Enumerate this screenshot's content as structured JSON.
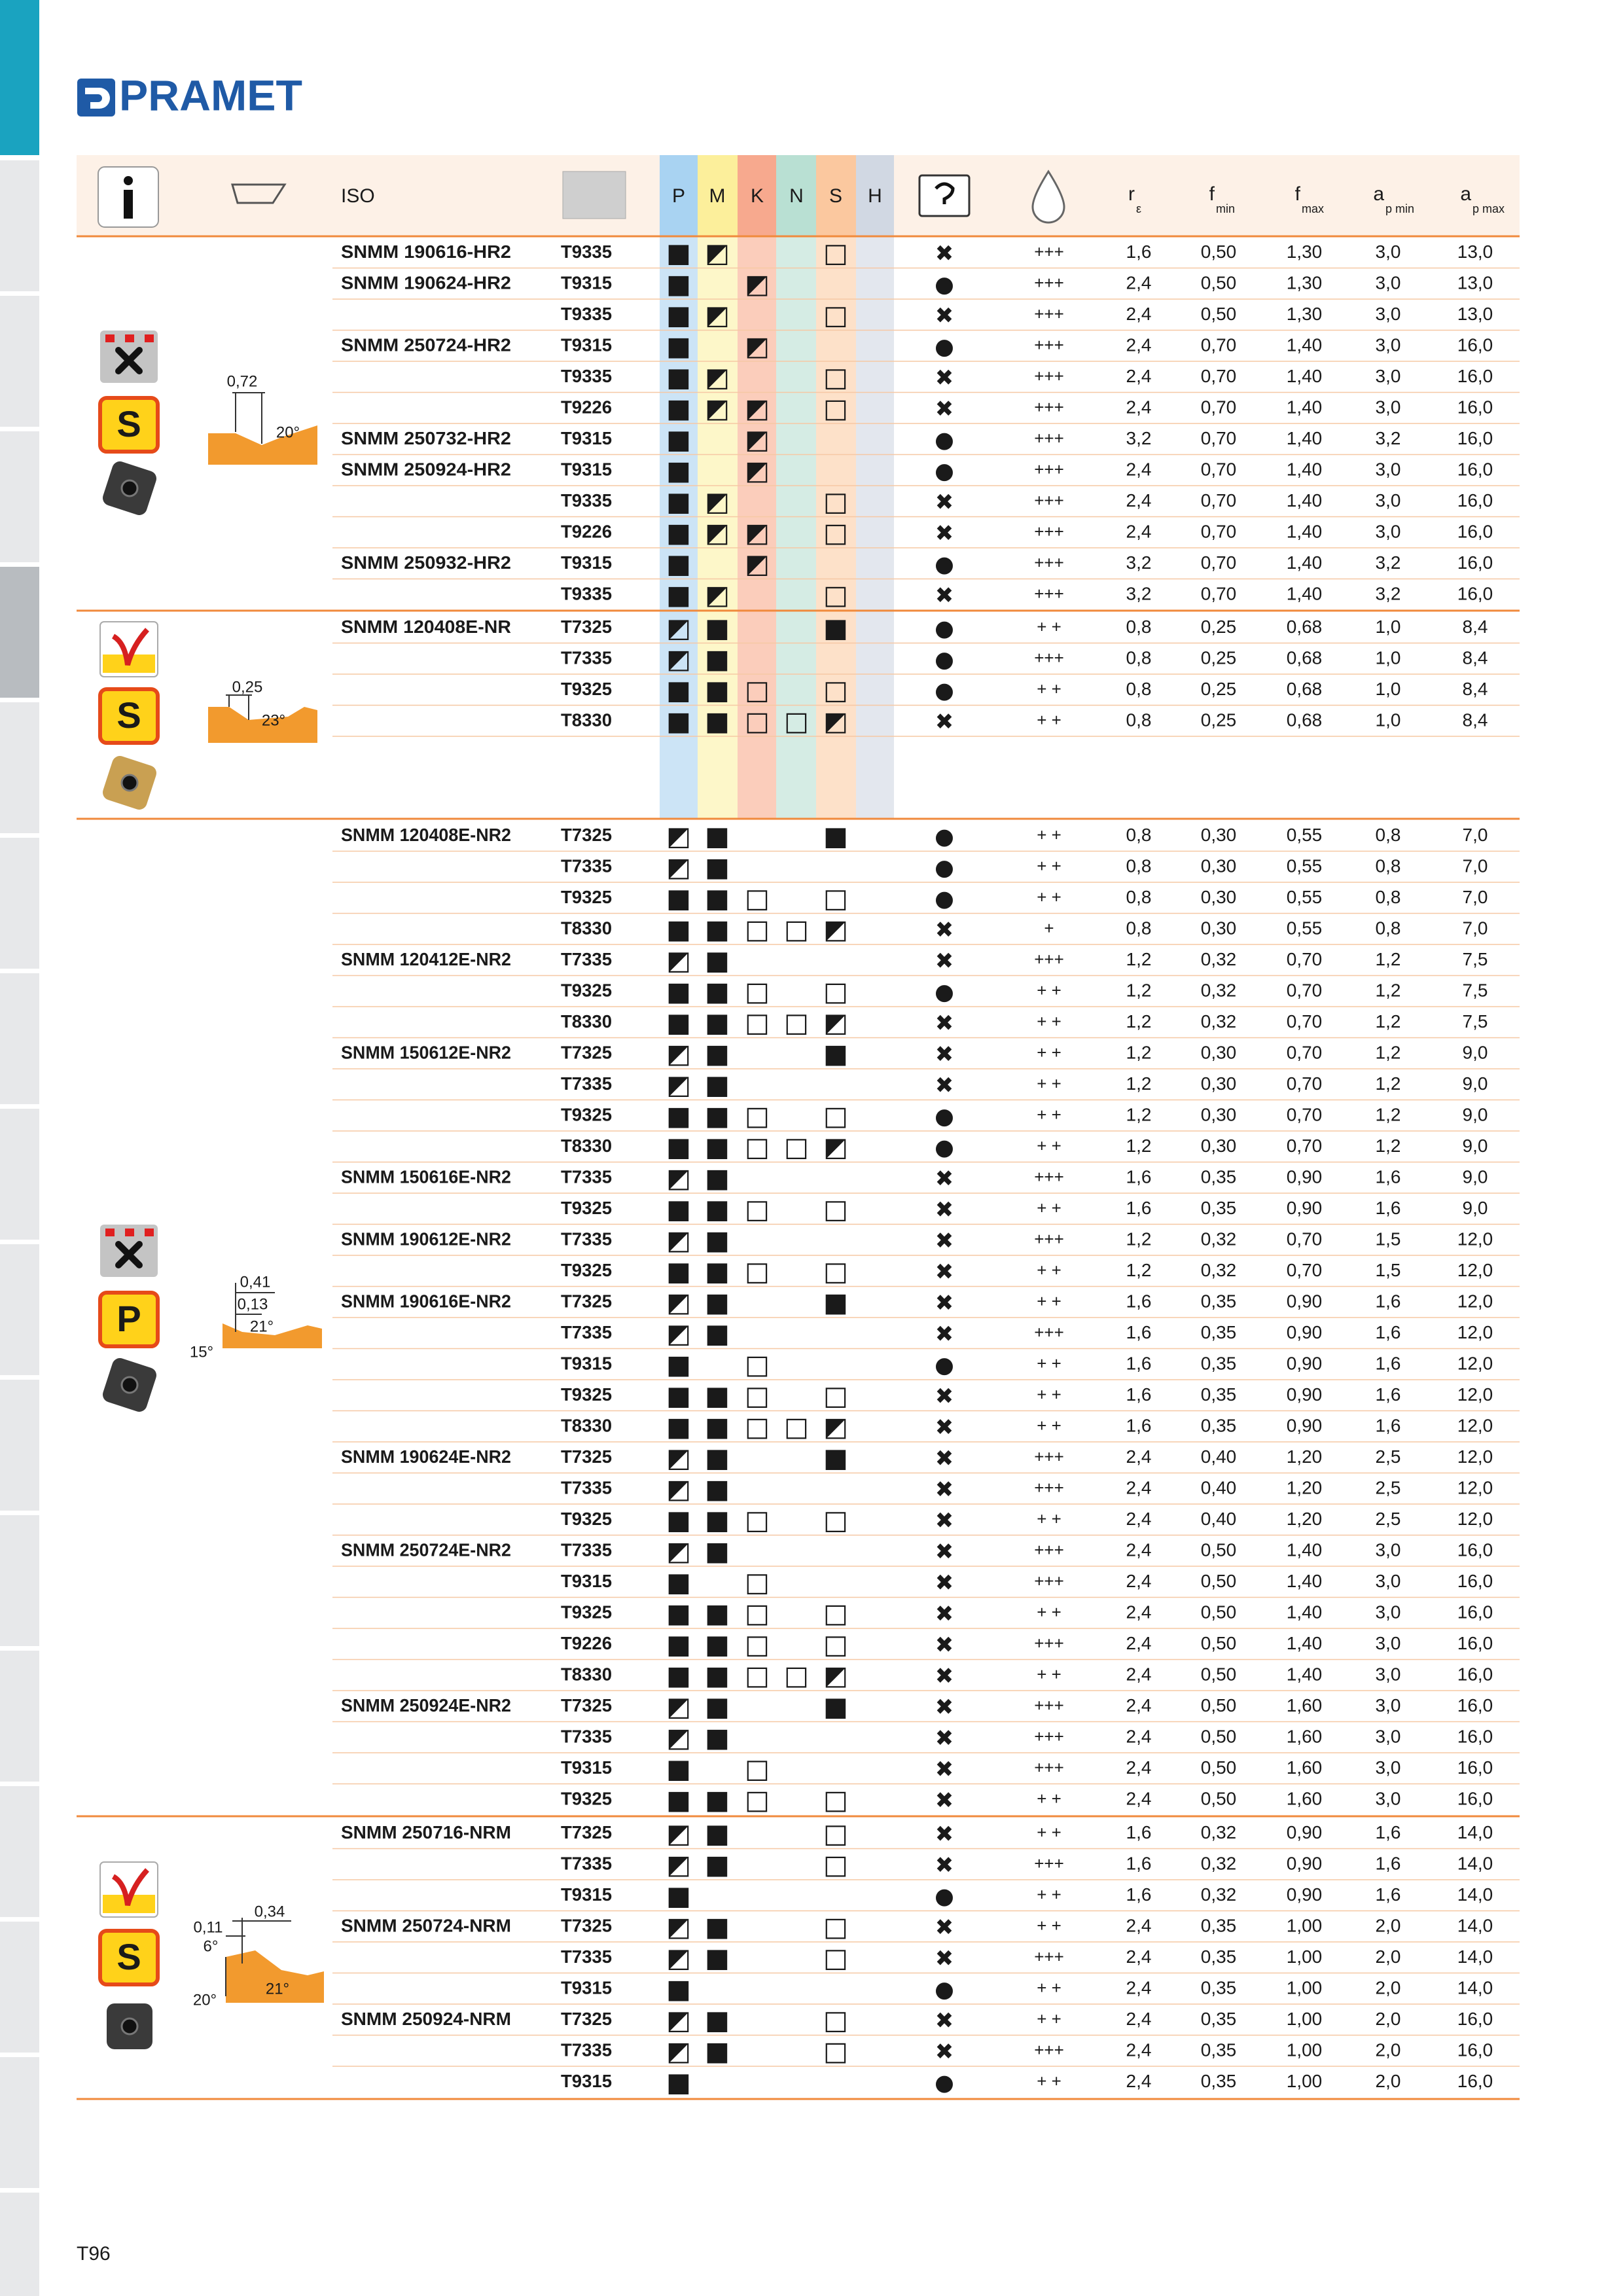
{
  "brand": "PRAMET",
  "page_number": "T96",
  "header": {
    "iso": "ISO",
    "materials": [
      "P",
      "M",
      "K",
      "N",
      "S",
      "H"
    ],
    "r": [
      "r",
      "ε"
    ],
    "fmin": [
      "f",
      "min"
    ],
    "fmax": [
      "f",
      "max"
    ],
    "apmin": [
      "a",
      "p min"
    ],
    "apmax": [
      "a",
      "p max"
    ]
  },
  "groups": [
    {
      "material": "S",
      "profile_labels": [
        "0,72",
        "20°"
      ],
      "rows": [
        [
          "SNMM 190616-HR2",
          "T9335",
          "■",
          "◩",
          null,
          null,
          "□",
          null,
          "✖",
          "+++",
          "1,6",
          "0,50",
          "1,30",
          "3,0",
          "13,0"
        ],
        [
          "SNMM 190624-HR2",
          "T9315",
          "■",
          null,
          "◩",
          null,
          null,
          null,
          "●",
          "+++",
          "2,4",
          "0,50",
          "1,30",
          "3,0",
          "13,0"
        ],
        [
          null,
          "T9335",
          "■",
          "◩",
          null,
          null,
          "□",
          null,
          "✖",
          "+++",
          "2,4",
          "0,50",
          "1,30",
          "3,0",
          "13,0"
        ],
        [
          "SNMM 250724-HR2",
          "T9315",
          "■",
          null,
          "◩",
          null,
          null,
          null,
          "●",
          "+++",
          "2,4",
          "0,70",
          "1,40",
          "3,0",
          "16,0"
        ],
        [
          null,
          "T9335",
          "■",
          "◩",
          null,
          null,
          "□",
          null,
          "✖",
          "+++",
          "2,4",
          "0,70",
          "1,40",
          "3,0",
          "16,0"
        ],
        [
          null,
          "T9226",
          "■",
          "◩",
          "◩",
          null,
          "□",
          null,
          "✖",
          "+++",
          "2,4",
          "0,70",
          "1,40",
          "3,0",
          "16,0"
        ],
        [
          "SNMM 250732-HR2",
          "T9315",
          "■",
          null,
          "◩",
          null,
          null,
          null,
          "●",
          "+++",
          "3,2",
          "0,70",
          "1,40",
          "3,2",
          "16,0"
        ],
        [
          "SNMM 250924-HR2",
          "T9315",
          "■",
          null,
          "◩",
          null,
          null,
          null,
          "●",
          "+++",
          "2,4",
          "0,70",
          "1,40",
          "3,0",
          "16,0"
        ],
        [
          null,
          "T9335",
          "■",
          "◩",
          null,
          null,
          "□",
          null,
          "✖",
          "+++",
          "2,4",
          "0,70",
          "1,40",
          "3,0",
          "16,0"
        ],
        [
          null,
          "T9226",
          "■",
          "◩",
          "◩",
          null,
          "□",
          null,
          "✖",
          "+++",
          "2,4",
          "0,70",
          "1,40",
          "3,0",
          "16,0"
        ],
        [
          "SNMM 250932-HR2",
          "T9315",
          "■",
          null,
          "◩",
          null,
          null,
          null,
          "●",
          "+++",
          "3,2",
          "0,70",
          "1,40",
          "3,2",
          "16,0"
        ],
        [
          null,
          "T9335",
          "■",
          "◩",
          null,
          null,
          "□",
          null,
          "✖",
          "+++",
          "3,2",
          "0,70",
          "1,40",
          "3,2",
          "16,0"
        ]
      ]
    },
    {
      "material": "S",
      "profile_labels": [
        "0,25",
        "23°"
      ],
      "rows": [
        [
          "SNMM 120408E-NR",
          "T7325",
          "◩",
          "■",
          null,
          null,
          "■",
          null,
          "●",
          "+ +",
          "0,8",
          "0,25",
          "0,68",
          "1,0",
          "8,4"
        ],
        [
          null,
          "T7335",
          "◩",
          "■",
          null,
          null,
          null,
          null,
          "●",
          "+++",
          "0,8",
          "0,25",
          "0,68",
          "1,0",
          "8,4"
        ],
        [
          null,
          "T9325",
          "■",
          "■",
          "□",
          null,
          "□",
          null,
          "●",
          "+ +",
          "0,8",
          "0,25",
          "0,68",
          "1,0",
          "8,4"
        ],
        [
          null,
          "T8330",
          "■",
          "■",
          "□",
          "□",
          "◩",
          null,
          "✖",
          "+ +",
          "0,8",
          "0,25",
          "0,68",
          "1,0",
          "8,4"
        ]
      ]
    },
    {
      "material": "P",
      "profile_labels": [
        "0,41",
        "0,13",
        "21°",
        "15°"
      ],
      "rows": [
        [
          "SNMM 120408E-NR2",
          "T7325",
          "◩",
          "■",
          null,
          null,
          "■",
          null,
          "●",
          "+ +",
          "0,8",
          "0,30",
          "0,55",
          "0,8",
          "7,0"
        ],
        [
          null,
          "T7335",
          "◩",
          "■",
          null,
          null,
          null,
          null,
          "●",
          "+ +",
          "0,8",
          "0,30",
          "0,55",
          "0,8",
          "7,0"
        ],
        [
          null,
          "T9325",
          "■",
          "■",
          "□",
          null,
          "□",
          null,
          "●",
          "+ +",
          "0,8",
          "0,30",
          "0,55",
          "0,8",
          "7,0"
        ],
        [
          null,
          "T8330",
          "■",
          "■",
          "□",
          "□",
          "◩",
          null,
          "✖",
          "+",
          "0,8",
          "0,30",
          "0,55",
          "0,8",
          "7,0"
        ],
        [
          "SNMM 120412E-NR2",
          "T7335",
          "◩",
          "■",
          null,
          null,
          null,
          null,
          "✖",
          "+++",
          "1,2",
          "0,32",
          "0,70",
          "1,2",
          "7,5"
        ],
        [
          null,
          "T9325",
          "■",
          "■",
          "□",
          null,
          "□",
          null,
          "●",
          "+ +",
          "1,2",
          "0,32",
          "0,70",
          "1,2",
          "7,5"
        ],
        [
          null,
          "T8330",
          "■",
          "■",
          "□",
          "□",
          "◩",
          null,
          "✖",
          "+ +",
          "1,2",
          "0,32",
          "0,70",
          "1,2",
          "7,5"
        ],
        [
          "SNMM 150612E-NR2",
          "T7325",
          "◩",
          "■",
          null,
          null,
          "■",
          null,
          "✖",
          "+ +",
          "1,2",
          "0,30",
          "0,70",
          "1,2",
          "9,0"
        ],
        [
          null,
          "T7335",
          "◩",
          "■",
          null,
          null,
          null,
          null,
          "✖",
          "+ +",
          "1,2",
          "0,30",
          "0,70",
          "1,2",
          "9,0"
        ],
        [
          null,
          "T9325",
          "■",
          "■",
          "□",
          null,
          "□",
          null,
          "●",
          "+ +",
          "1,2",
          "0,30",
          "0,70",
          "1,2",
          "9,0"
        ],
        [
          null,
          "T8330",
          "■",
          "■",
          "□",
          "□",
          "◩",
          null,
          "●",
          "+ +",
          "1,2",
          "0,30",
          "0,70",
          "1,2",
          "9,0"
        ],
        [
          "SNMM 150616E-NR2",
          "T7335",
          "◩",
          "■",
          null,
          null,
          null,
          null,
          "✖",
          "+++",
          "1,6",
          "0,35",
          "0,90",
          "1,6",
          "9,0"
        ],
        [
          null,
          "T9325",
          "■",
          "■",
          "□",
          null,
          "□",
          null,
          "✖",
          "+ +",
          "1,6",
          "0,35",
          "0,90",
          "1,6",
          "9,0"
        ],
        [
          "SNMM 190612E-NR2",
          "T7335",
          "◩",
          "■",
          null,
          null,
          null,
          null,
          "✖",
          "+++",
          "1,2",
          "0,32",
          "0,70",
          "1,5",
          "12,0"
        ],
        [
          null,
          "T9325",
          "■",
          "■",
          "□",
          null,
          "□",
          null,
          "✖",
          "+ +",
          "1,2",
          "0,32",
          "0,70",
          "1,5",
          "12,0"
        ],
        [
          "SNMM 190616E-NR2",
          "T7325",
          "◩",
          "■",
          null,
          null,
          "■",
          null,
          "✖",
          "+ +",
          "1,6",
          "0,35",
          "0,90",
          "1,6",
          "12,0"
        ],
        [
          null,
          "T7335",
          "◩",
          "■",
          null,
          null,
          null,
          null,
          "✖",
          "+++",
          "1,6",
          "0,35",
          "0,90",
          "1,6",
          "12,0"
        ],
        [
          null,
          "T9315",
          "■",
          null,
          "□",
          null,
          null,
          null,
          "●",
          "+ +",
          "1,6",
          "0,35",
          "0,90",
          "1,6",
          "12,0"
        ],
        [
          null,
          "T9325",
          "■",
          "■",
          "□",
          null,
          "□",
          null,
          "✖",
          "+ +",
          "1,6",
          "0,35",
          "0,90",
          "1,6",
          "12,0"
        ],
        [
          null,
          "T8330",
          "■",
          "■",
          "□",
          "□",
          "◩",
          null,
          "✖",
          "+ +",
          "1,6",
          "0,35",
          "0,90",
          "1,6",
          "12,0"
        ],
        [
          "SNMM 190624E-NR2",
          "T7325",
          "◩",
          "■",
          null,
          null,
          "■",
          null,
          "✖",
          "+++",
          "2,4",
          "0,40",
          "1,20",
          "2,5",
          "12,0"
        ],
        [
          null,
          "T7335",
          "◩",
          "■",
          null,
          null,
          null,
          null,
          "✖",
          "+++",
          "2,4",
          "0,40",
          "1,20",
          "2,5",
          "12,0"
        ],
        [
          null,
          "T9325",
          "■",
          "■",
          "□",
          null,
          "□",
          null,
          "✖",
          "+ +",
          "2,4",
          "0,40",
          "1,20",
          "2,5",
          "12,0"
        ],
        [
          "SNMM 250724E-NR2",
          "T7335",
          "◩",
          "■",
          null,
          null,
          null,
          null,
          "✖",
          "+++",
          "2,4",
          "0,50",
          "1,40",
          "3,0",
          "16,0"
        ],
        [
          null,
          "T9315",
          "■",
          null,
          "□",
          null,
          null,
          null,
          "✖",
          "+++",
          "2,4",
          "0,50",
          "1,40",
          "3,0",
          "16,0"
        ],
        [
          null,
          "T9325",
          "■",
          "■",
          "□",
          null,
          "□",
          null,
          "✖",
          "+ +",
          "2,4",
          "0,50",
          "1,40",
          "3,0",
          "16,0"
        ],
        [
          null,
          "T9226",
          "■",
          "■",
          "□",
          null,
          "□",
          null,
          "✖",
          "+++",
          "2,4",
          "0,50",
          "1,40",
          "3,0",
          "16,0"
        ],
        [
          null,
          "T8330",
          "■",
          "■",
          "□",
          "□",
          "◩",
          null,
          "✖",
          "+ +",
          "2,4",
          "0,50",
          "1,40",
          "3,0",
          "16,0"
        ],
        [
          "SNMM 250924E-NR2",
          "T7325",
          "◩",
          "■",
          null,
          null,
          "■",
          null,
          "✖",
          "+++",
          "2,4",
          "0,50",
          "1,60",
          "3,0",
          "16,0"
        ],
        [
          null,
          "T7335",
          "◩",
          "■",
          null,
          null,
          null,
          null,
          "✖",
          "+++",
          "2,4",
          "0,50",
          "1,60",
          "3,0",
          "16,0"
        ],
        [
          null,
          "T9315",
          "■",
          null,
          "□",
          null,
          null,
          null,
          "✖",
          "+++",
          "2,4",
          "0,50",
          "1,60",
          "3,0",
          "16,0"
        ],
        [
          null,
          "T9325",
          "■",
          "■",
          "□",
          null,
          "□",
          null,
          "✖",
          "+ +",
          "2,4",
          "0,50",
          "1,60",
          "3,0",
          "16,0"
        ]
      ]
    },
    {
      "material": "S",
      "profile_labels": [
        "0,34",
        "0,11",
        "6°",
        "20°",
        "21°"
      ],
      "rows": [
        [
          "SNMM 250716-NRM",
          "T7325",
          "◩",
          "■",
          null,
          null,
          "□",
          null,
          "✖",
          "+ +",
          "1,6",
          "0,32",
          "0,90",
          "1,6",
          "14,0"
        ],
        [
          null,
          "T7335",
          "◩",
          "■",
          null,
          null,
          "□",
          null,
          "✖",
          "+++",
          "1,6",
          "0,32",
          "0,90",
          "1,6",
          "14,0"
        ],
        [
          null,
          "T9315",
          "■",
          null,
          null,
          null,
          null,
          null,
          "●",
          "+ +",
          "1,6",
          "0,32",
          "0,90",
          "1,6",
          "14,0"
        ],
        [
          "SNMM 250724-NRM",
          "T7325",
          "◩",
          "■",
          null,
          null,
          "□",
          null,
          "✖",
          "+ +",
          "2,4",
          "0,35",
          "1,00",
          "2,0",
          "14,0"
        ],
        [
          null,
          "T7335",
          "◩",
          "■",
          null,
          null,
          "□",
          null,
          "✖",
          "+++",
          "2,4",
          "0,35",
          "1,00",
          "2,0",
          "14,0"
        ],
        [
          null,
          "T9315",
          "■",
          null,
          null,
          null,
          null,
          null,
          "●",
          "+ +",
          "2,4",
          "0,35",
          "1,00",
          "2,0",
          "14,0"
        ],
        [
          "SNMM 250924-NRM",
          "T7325",
          "◩",
          "■",
          null,
          null,
          "□",
          null,
          "✖",
          "+ +",
          "2,4",
          "0,35",
          "1,00",
          "2,0",
          "16,0"
        ],
        [
          null,
          "T7335",
          "◩",
          "■",
          null,
          null,
          "□",
          null,
          "✖",
          "+++",
          "2,4",
          "0,35",
          "1,00",
          "2,0",
          "16,0"
        ],
        [
          null,
          "T9315",
          "■",
          null,
          null,
          null,
          null,
          null,
          "●",
          "+ +",
          "2,4",
          "0,35",
          "1,00",
          "2,0",
          "16,0"
        ]
      ]
    }
  ]
}
